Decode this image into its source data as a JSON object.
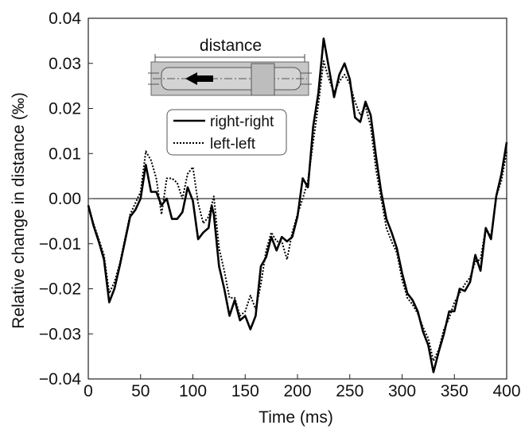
{
  "chart_data": {
    "type": "line",
    "title": "",
    "xlabel": "Time (ms)",
    "ylabel": "Relative change in distance (‰)",
    "xlim": [
      0,
      400
    ],
    "ylim": [
      -0.04,
      0.04
    ],
    "x_ticks": [
      0,
      50,
      100,
      150,
      200,
      250,
      300,
      350,
      400
    ],
    "x_tick_labels": [
      "0",
      "50",
      "100",
      "150",
      "200",
      "250",
      "300",
      "350",
      "400"
    ],
    "y_ticks": [
      -0.04,
      -0.03,
      -0.02,
      -0.01,
      0.0,
      0.01,
      0.02,
      0.03,
      0.04
    ],
    "y_tick_labels": [
      "−0.04",
      "−0.03",
      "−0.02",
      "−0.01",
      "0.00",
      "0.01",
      "0.02",
      "0.03",
      "0.04"
    ],
    "zero_line": true,
    "grid": false,
    "legend_position": "top-left",
    "inset_label": "distance",
    "series": [
      {
        "name": "right-right",
        "style": "solid",
        "color": "#000000",
        "points": [
          [
            0,
            -0.0015
          ],
          [
            5,
            -0.006
          ],
          [
            10,
            -0.0095
          ],
          [
            15,
            -0.0135
          ],
          [
            20,
            -0.023
          ],
          [
            25,
            -0.02
          ],
          [
            30,
            -0.015
          ],
          [
            35,
            -0.0095
          ],
          [
            40,
            -0.004
          ],
          [
            45,
            -0.0025
          ],
          [
            50,
            0.0
          ],
          [
            55,
            0.0075
          ],
          [
            60,
            0.0015
          ],
          [
            65,
            0.0015
          ],
          [
            70,
            -0.0015
          ],
          [
            75,
            0.0
          ],
          [
            80,
            -0.0045
          ],
          [
            85,
            -0.0045
          ],
          [
            90,
            -0.003
          ],
          [
            95,
            0.0025
          ],
          [
            100,
            -0.0005
          ],
          [
            105,
            -0.009
          ],
          [
            110,
            -0.0075
          ],
          [
            115,
            -0.0065
          ],
          [
            118,
            -0.0015
          ],
          [
            120,
            -0.0035
          ],
          [
            125,
            -0.015
          ],
          [
            130,
            -0.02
          ],
          [
            135,
            -0.026
          ],
          [
            140,
            -0.0225
          ],
          [
            145,
            -0.027
          ],
          [
            150,
            -0.026
          ],
          [
            155,
            -0.029
          ],
          [
            160,
            -0.026
          ],
          [
            165,
            -0.015
          ],
          [
            170,
            -0.013
          ],
          [
            175,
            -0.0085
          ],
          [
            180,
            -0.0115
          ],
          [
            185,
            -0.0085
          ],
          [
            190,
            -0.0095
          ],
          [
            195,
            -0.0085
          ],
          [
            200,
            -0.004
          ],
          [
            205,
            0.0045
          ],
          [
            210,
            0.0025
          ],
          [
            215,
            0.016
          ],
          [
            220,
            0.0235
          ],
          [
            225,
            0.0355
          ],
          [
            230,
            0.029
          ],
          [
            235,
            0.0225
          ],
          [
            240,
            0.0275
          ],
          [
            245,
            0.03
          ],
          [
            250,
            0.0265
          ],
          [
            255,
            0.018
          ],
          [
            260,
            0.017
          ],
          [
            265,
            0.0215
          ],
          [
            270,
            0.0185
          ],
          [
            275,
            0.0095
          ],
          [
            280,
            0.0015
          ],
          [
            285,
            -0.0045
          ],
          [
            290,
            -0.0075
          ],
          [
            295,
            -0.011
          ],
          [
            300,
            -0.0165
          ],
          [
            305,
            -0.021
          ],
          [
            310,
            -0.0225
          ],
          [
            315,
            -0.025
          ],
          [
            320,
            -0.0295
          ],
          [
            325,
            -0.0325
          ],
          [
            330,
            -0.0385
          ],
          [
            335,
            -0.034
          ],
          [
            340,
            -0.03
          ],
          [
            345,
            -0.025
          ],
          [
            350,
            -0.025
          ],
          [
            355,
            -0.02
          ],
          [
            360,
            -0.0205
          ],
          [
            365,
            -0.0185
          ],
          [
            370,
            -0.0125
          ],
          [
            375,
            -0.016
          ],
          [
            380,
            -0.0065
          ],
          [
            385,
            -0.009
          ],
          [
            390,
            0.0005
          ],
          [
            395,
            0.0055
          ],
          [
            400,
            0.0125
          ]
        ]
      },
      {
        "name": "left-left",
        "style": "dotted",
        "color": "#000000",
        "points": [
          [
            0,
            -0.0015
          ],
          [
            5,
            -0.0055
          ],
          [
            10,
            -0.009
          ],
          [
            15,
            -0.0125
          ],
          [
            20,
            -0.021
          ],
          [
            25,
            -0.0185
          ],
          [
            30,
            -0.0145
          ],
          [
            35,
            -0.009
          ],
          [
            40,
            -0.0035
          ],
          [
            45,
            -0.001
          ],
          [
            50,
            0.0015
          ],
          [
            55,
            0.0105
          ],
          [
            60,
            0.0085
          ],
          [
            65,
            0.0045
          ],
          [
            70,
            -0.0035
          ],
          [
            75,
            0.0045
          ],
          [
            80,
            0.0045
          ],
          [
            85,
            0.0035
          ],
          [
            90,
            0.0
          ],
          [
            95,
            0.0055
          ],
          [
            100,
            0.007
          ],
          [
            105,
            -0.001
          ],
          [
            110,
            -0.0055
          ],
          [
            115,
            -0.004
          ],
          [
            120,
            0.0005
          ],
          [
            125,
            -0.011
          ],
          [
            130,
            -0.016
          ],
          [
            135,
            -0.022
          ],
          [
            140,
            -0.022
          ],
          [
            145,
            -0.026
          ],
          [
            150,
            -0.025
          ],
          [
            155,
            -0.0215
          ],
          [
            160,
            -0.0245
          ],
          [
            165,
            -0.019
          ],
          [
            170,
            -0.0115
          ],
          [
            175,
            -0.0075
          ],
          [
            180,
            -0.0095
          ],
          [
            185,
            -0.0095
          ],
          [
            190,
            -0.0135
          ],
          [
            195,
            -0.0075
          ],
          [
            200,
            -0.0035
          ],
          [
            205,
            0.0
          ],
          [
            210,
            0.004
          ],
          [
            215,
            0.0125
          ],
          [
            220,
            0.021
          ],
          [
            225,
            0.0305
          ],
          [
            230,
            0.0265
          ],
          [
            235,
            0.0235
          ],
          [
            240,
            0.026
          ],
          [
            245,
            0.0275
          ],
          [
            250,
            0.0255
          ],
          [
            255,
            0.0215
          ],
          [
            260,
            0.0185
          ],
          [
            265,
            0.0205
          ],
          [
            270,
            0.016
          ],
          [
            275,
            0.0065
          ],
          [
            280,
            0.0
          ],
          [
            285,
            -0.0065
          ],
          [
            290,
            -0.0095
          ],
          [
            295,
            -0.012
          ],
          [
            300,
            -0.018
          ],
          [
            305,
            -0.022
          ],
          [
            310,
            -0.0235
          ],
          [
            315,
            -0.0255
          ],
          [
            320,
            -0.0285
          ],
          [
            325,
            -0.031
          ],
          [
            330,
            -0.036
          ],
          [
            335,
            -0.0335
          ],
          [
            340,
            -0.029
          ],
          [
            345,
            -0.0265
          ],
          [
            350,
            -0.023
          ],
          [
            355,
            -0.021
          ],
          [
            360,
            -0.019
          ],
          [
            365,
            -0.0175
          ],
          [
            370,
            -0.014
          ],
          [
            375,
            -0.0135
          ],
          [
            380,
            -0.0065
          ],
          [
            385,
            -0.0085
          ],
          [
            390,
            0.0005
          ],
          [
            395,
            0.004
          ],
          [
            400,
            0.0105
          ]
        ]
      }
    ]
  }
}
